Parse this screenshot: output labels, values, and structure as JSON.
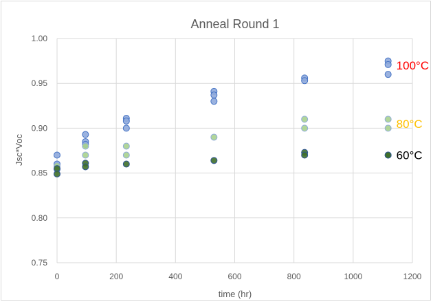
{
  "chart_data": {
    "type": "scatter",
    "title": "Anneal Round 1",
    "xlabel": "time (hr)",
    "ylabel": "Jsc*Voc",
    "xlim": [
      0,
      1200
    ],
    "ylim": [
      0.75,
      1.0
    ],
    "xticks": [
      "0",
      "200",
      "400",
      "600",
      "800",
      "1000",
      "1200"
    ],
    "yticks": [
      "0.75",
      "0.80",
      "0.85",
      "0.90",
      "0.95",
      "1.00"
    ],
    "xtick_values": [
      0,
      200,
      400,
      600,
      800,
      1000,
      1200
    ],
    "ytick_values": [
      0.75,
      0.8,
      0.85,
      0.9,
      0.95,
      1.0
    ],
    "grid": true,
    "series": [
      {
        "name": "100°C",
        "color": "#8faadc",
        "edge": "#4472c4",
        "label_color": "#ff0000",
        "points": [
          [
            0,
            0.87
          ],
          [
            0,
            0.86
          ],
          [
            96,
            0.893
          ],
          [
            96,
            0.885
          ],
          [
            96,
            0.882
          ],
          [
            234,
            0.911
          ],
          [
            234,
            0.908
          ],
          [
            234,
            0.9
          ],
          [
            530,
            0.941
          ],
          [
            530,
            0.937
          ],
          [
            530,
            0.93
          ],
          [
            836,
            0.956
          ],
          [
            836,
            0.953
          ],
          [
            1118,
            0.975
          ],
          [
            1118,
            0.971
          ],
          [
            1118,
            0.96
          ]
        ]
      },
      {
        "name": "80°C",
        "color": "#a9d18e",
        "edge": "#8faadc",
        "label_color": "#ffc000",
        "points": [
          [
            0,
            0.858
          ],
          [
            0,
            0.854
          ],
          [
            96,
            0.88
          ],
          [
            96,
            0.87
          ],
          [
            234,
            0.88
          ],
          [
            234,
            0.87
          ],
          [
            530,
            0.89
          ],
          [
            836,
            0.91
          ],
          [
            836,
            0.9
          ],
          [
            1118,
            0.91
          ],
          [
            1118,
            0.9
          ]
        ]
      },
      {
        "name": "60°C",
        "color": "#3f6f2a",
        "edge": "#2f5597",
        "label_color": "#000000",
        "points": [
          [
            0,
            0.855
          ],
          [
            0,
            0.849
          ],
          [
            96,
            0.861
          ],
          [
            96,
            0.857
          ],
          [
            234,
            0.86
          ],
          [
            530,
            0.864
          ],
          [
            836,
            0.873
          ],
          [
            836,
            0.87
          ],
          [
            1118,
            0.87
          ]
        ]
      }
    ],
    "annotations": [
      {
        "text": "100°C",
        "series": 0,
        "anchor_y": 0.97
      },
      {
        "text": "80°C",
        "series": 1,
        "anchor_y": 0.905
      },
      {
        "text": "60°C",
        "series": 2,
        "anchor_y": 0.87
      }
    ]
  }
}
